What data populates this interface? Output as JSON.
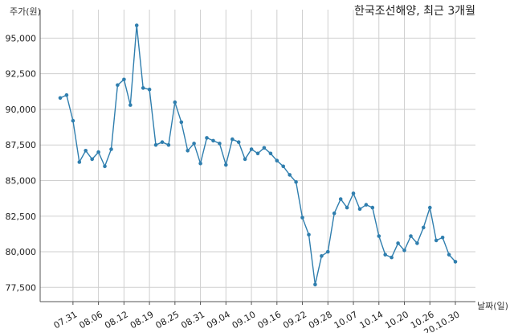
{
  "chart_data": {
    "type": "line",
    "title": "한국조선해양, 최근 3개월",
    "ylabel": "주가(원)",
    "xlabel": "날짜(일)",
    "ylim": [
      76500,
      97000
    ],
    "yticks": [
      77500,
      80000,
      82500,
      85000,
      87500,
      90000,
      92500,
      95000
    ],
    "ytick_labels": [
      "77,500",
      "80,000",
      "82,500",
      "85,000",
      "87,500",
      "90,000",
      "92,500",
      "95,000"
    ],
    "grid": true,
    "xtick_labels": [
      "07.31",
      "08.06",
      "08.12",
      "08.19",
      "08.25",
      "08.31",
      "09.04",
      "09.10",
      "09.16",
      "09.22",
      "09.28",
      "10.07",
      "10.14",
      "10.20",
      "10.26",
      "20.10.30"
    ],
    "xtick_positions": [
      2,
      6,
      10,
      14,
      18,
      22,
      26,
      30,
      34,
      38,
      42,
      46,
      50,
      54,
      58,
      62
    ],
    "series": [
      {
        "color": "#2f7eae",
        "values": [
          90800,
          91000,
          89200,
          86300,
          87100,
          86500,
          87000,
          86000,
          87200,
          91700,
          92100,
          90300,
          95900,
          91500,
          91400,
          87500,
          87700,
          87500,
          90500,
          89100,
          87100,
          87600,
          86200,
          88000,
          87800,
          87600,
          86100,
          87900,
          87700,
          86500,
          87200,
          86900,
          87300,
          86900,
          86400,
          86000,
          85400,
          84900,
          82400,
          81200,
          77700,
          79700,
          80000,
          82700,
          83700,
          83100,
          84100,
          83000,
          83300,
          83100,
          81100,
          79800,
          79600,
          80600,
          80100,
          81100,
          80600,
          81700,
          83100,
          80800,
          81000,
          79800,
          79300
        ]
      }
    ]
  }
}
